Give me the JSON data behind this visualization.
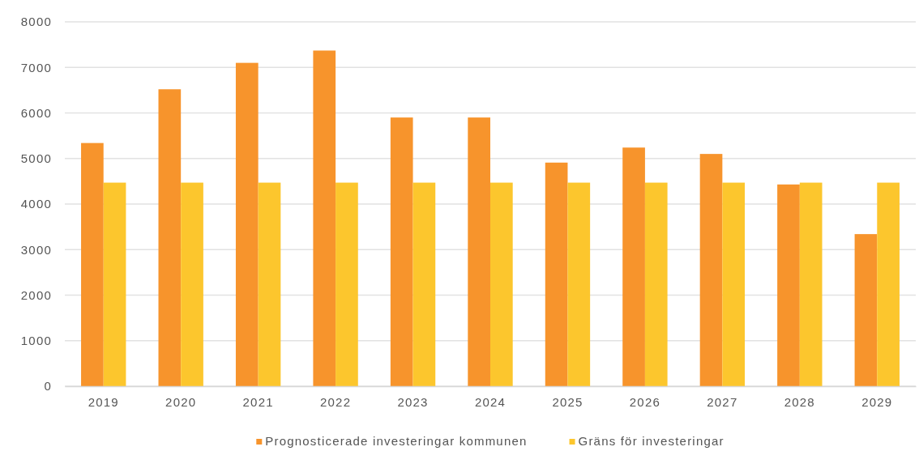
{
  "chart_data": {
    "type": "bar",
    "categories": [
      "2019",
      "2020",
      "2021",
      "2022",
      "2023",
      "2024",
      "2025",
      "2026",
      "2027",
      "2028",
      "2029"
    ],
    "series": [
      {
        "name": "Prognosticerade investeringar kommunen",
        "color": "#f7942c",
        "values": [
          5340,
          6520,
          7100,
          7370,
          5900,
          5900,
          4910,
          5240,
          5100,
          4430,
          3340
        ]
      },
      {
        "name": "Gräns för investeringar",
        "color": "#fcc62d",
        "values": [
          4470,
          4470,
          4470,
          4470,
          4470,
          4470,
          4470,
          4470,
          4470,
          4470,
          4470
        ]
      }
    ],
    "ylim": [
      0,
      8000
    ],
    "yticks": [
      0,
      1000,
      2000,
      3000,
      4000,
      5000,
      6000,
      7000,
      8000
    ],
    "grid": "y",
    "legend": "bottom"
  }
}
